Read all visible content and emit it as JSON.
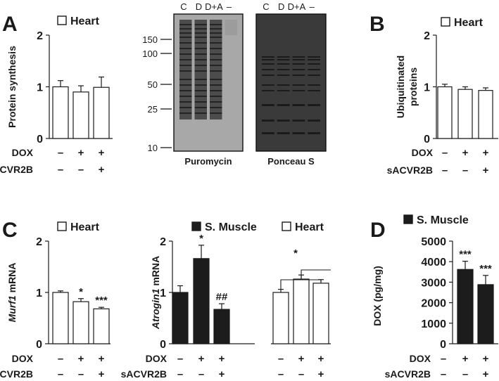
{
  "colors": {
    "white_bar": "#ffffff",
    "black_bar": "#1c1c1c",
    "axis": "#1a1a1a"
  },
  "panel_labels": {
    "a": "A",
    "b": "B",
    "c": "C",
    "d": "D"
  },
  "row_labels": {
    "dox": "DOX",
    "sacvr2b": "sACVR2B",
    "plus": "+",
    "minus": "–"
  },
  "blots": {
    "puromycin": {
      "title": "Puromycin",
      "lanes": [
        "C",
        "D",
        "D+A",
        "–"
      ],
      "markers": [
        "150",
        "100",
        "50",
        "25",
        "10"
      ]
    },
    "ponceau": {
      "title": "Ponceau S",
      "lanes": [
        "C",
        "D",
        "D+A",
        "–"
      ]
    }
  },
  "chart_data": [
    {
      "id": "protein_synthesis",
      "type": "bar",
      "panel": "A",
      "legend": [
        {
          "label": "Heart",
          "fill": "white"
        }
      ],
      "ylabel": "Protein synthesis",
      "ylabel_italic": "",
      "ylim": [
        0,
        2
      ],
      "yticks": [
        0,
        1,
        2
      ],
      "conditions": {
        "dox": [
          "–",
          "+",
          "+"
        ],
        "sacvr2b": [
          "–",
          "–",
          "+"
        ]
      },
      "series": [
        {
          "name": "Heart",
          "fill": "white",
          "values": [
            1.0,
            0.9,
            0.99
          ],
          "errors": [
            0.12,
            0.12,
            0.2
          ],
          "annotations": [
            "",
            "",
            ""
          ]
        }
      ]
    },
    {
      "id": "ubiquitinated_proteins",
      "type": "bar",
      "panel": "B",
      "legend": [
        {
          "label": "Heart",
          "fill": "white"
        }
      ],
      "ylabel": "Ubiquitinated proteins",
      "ylabel_italic": "",
      "ylim": [
        0,
        2
      ],
      "yticks": [
        0,
        1,
        2
      ],
      "conditions": {
        "dox": [
          "–",
          "+",
          "+"
        ],
        "sacvr2b": [
          "–",
          "–",
          "+"
        ]
      },
      "series": [
        {
          "name": "Heart",
          "fill": "white",
          "values": [
            1.0,
            0.95,
            0.93
          ],
          "errors": [
            0.05,
            0.05,
            0.05
          ],
          "annotations": [
            "",
            "",
            ""
          ]
        }
      ]
    },
    {
      "id": "murf1_mrna",
      "type": "bar",
      "panel": "C",
      "legend": [
        {
          "label": "Heart",
          "fill": "white"
        }
      ],
      "ylabel": "mRNA",
      "ylabel_italic": "Murf1",
      "ylim": [
        0,
        2
      ],
      "yticks": [
        0,
        1,
        2
      ],
      "conditions": {
        "dox": [
          "–",
          "+",
          "+"
        ],
        "sacvr2b": [
          "–",
          "–",
          "+"
        ]
      },
      "series": [
        {
          "name": "Heart",
          "fill": "white",
          "values": [
            1.0,
            0.82,
            0.68
          ],
          "errors": [
            0.03,
            0.06,
            0.03
          ],
          "annotations": [
            "",
            "*",
            "***"
          ]
        }
      ]
    },
    {
      "id": "atrogin1_mrna",
      "type": "bar",
      "panel": "C",
      "legend": [
        {
          "label": "S. Muscle",
          "fill": "black"
        },
        {
          "label": "Heart",
          "fill": "white"
        }
      ],
      "ylabel": "mRNA",
      "ylabel_italic": "Atrogin1",
      "ylim": [
        0,
        2
      ],
      "yticks": [
        0,
        1,
        2
      ],
      "conditions": {
        "dox": [
          "–",
          "+",
          "+",
          "–",
          "+",
          "+"
        ],
        "sacvr2b": [
          "–",
          "–",
          "+",
          "–",
          "–",
          "+"
        ]
      },
      "series": [
        {
          "name": "S. Muscle",
          "fill": "black",
          "values": [
            1.0,
            1.66,
            0.67
          ],
          "errors": [
            0.13,
            0.26,
            0.11
          ],
          "annotations": [
            "",
            "*",
            "##"
          ]
        },
        {
          "name": "Heart",
          "fill": "white",
          "values": [
            1.0,
            1.26,
            1.18
          ],
          "errors": [
            0.06,
            0.08,
            0.07
          ],
          "annotations": [
            "",
            "",
            ""
          ]
        }
      ],
      "bracket_label": "*"
    },
    {
      "id": "dox_concentration",
      "type": "bar",
      "panel": "D",
      "legend": [
        {
          "label": "S. Muscle",
          "fill": "black"
        }
      ],
      "ylabel": "DOX (pg/mg)",
      "ylabel_italic": "",
      "ylim": [
        0,
        5000
      ],
      "yticks": [
        0,
        1000,
        2000,
        3000,
        4000,
        5000
      ],
      "conditions": {
        "dox": [
          "–",
          "+",
          "+"
        ],
        "sacvr2b": [
          "–",
          "–",
          "+"
        ]
      },
      "series": [
        {
          "name": "S. Muscle",
          "fill": "black",
          "values": [
            0,
            3620,
            2880
          ],
          "errors": [
            0,
            400,
            450
          ],
          "annotations": [
            "",
            "***",
            "***"
          ]
        }
      ]
    }
  ]
}
